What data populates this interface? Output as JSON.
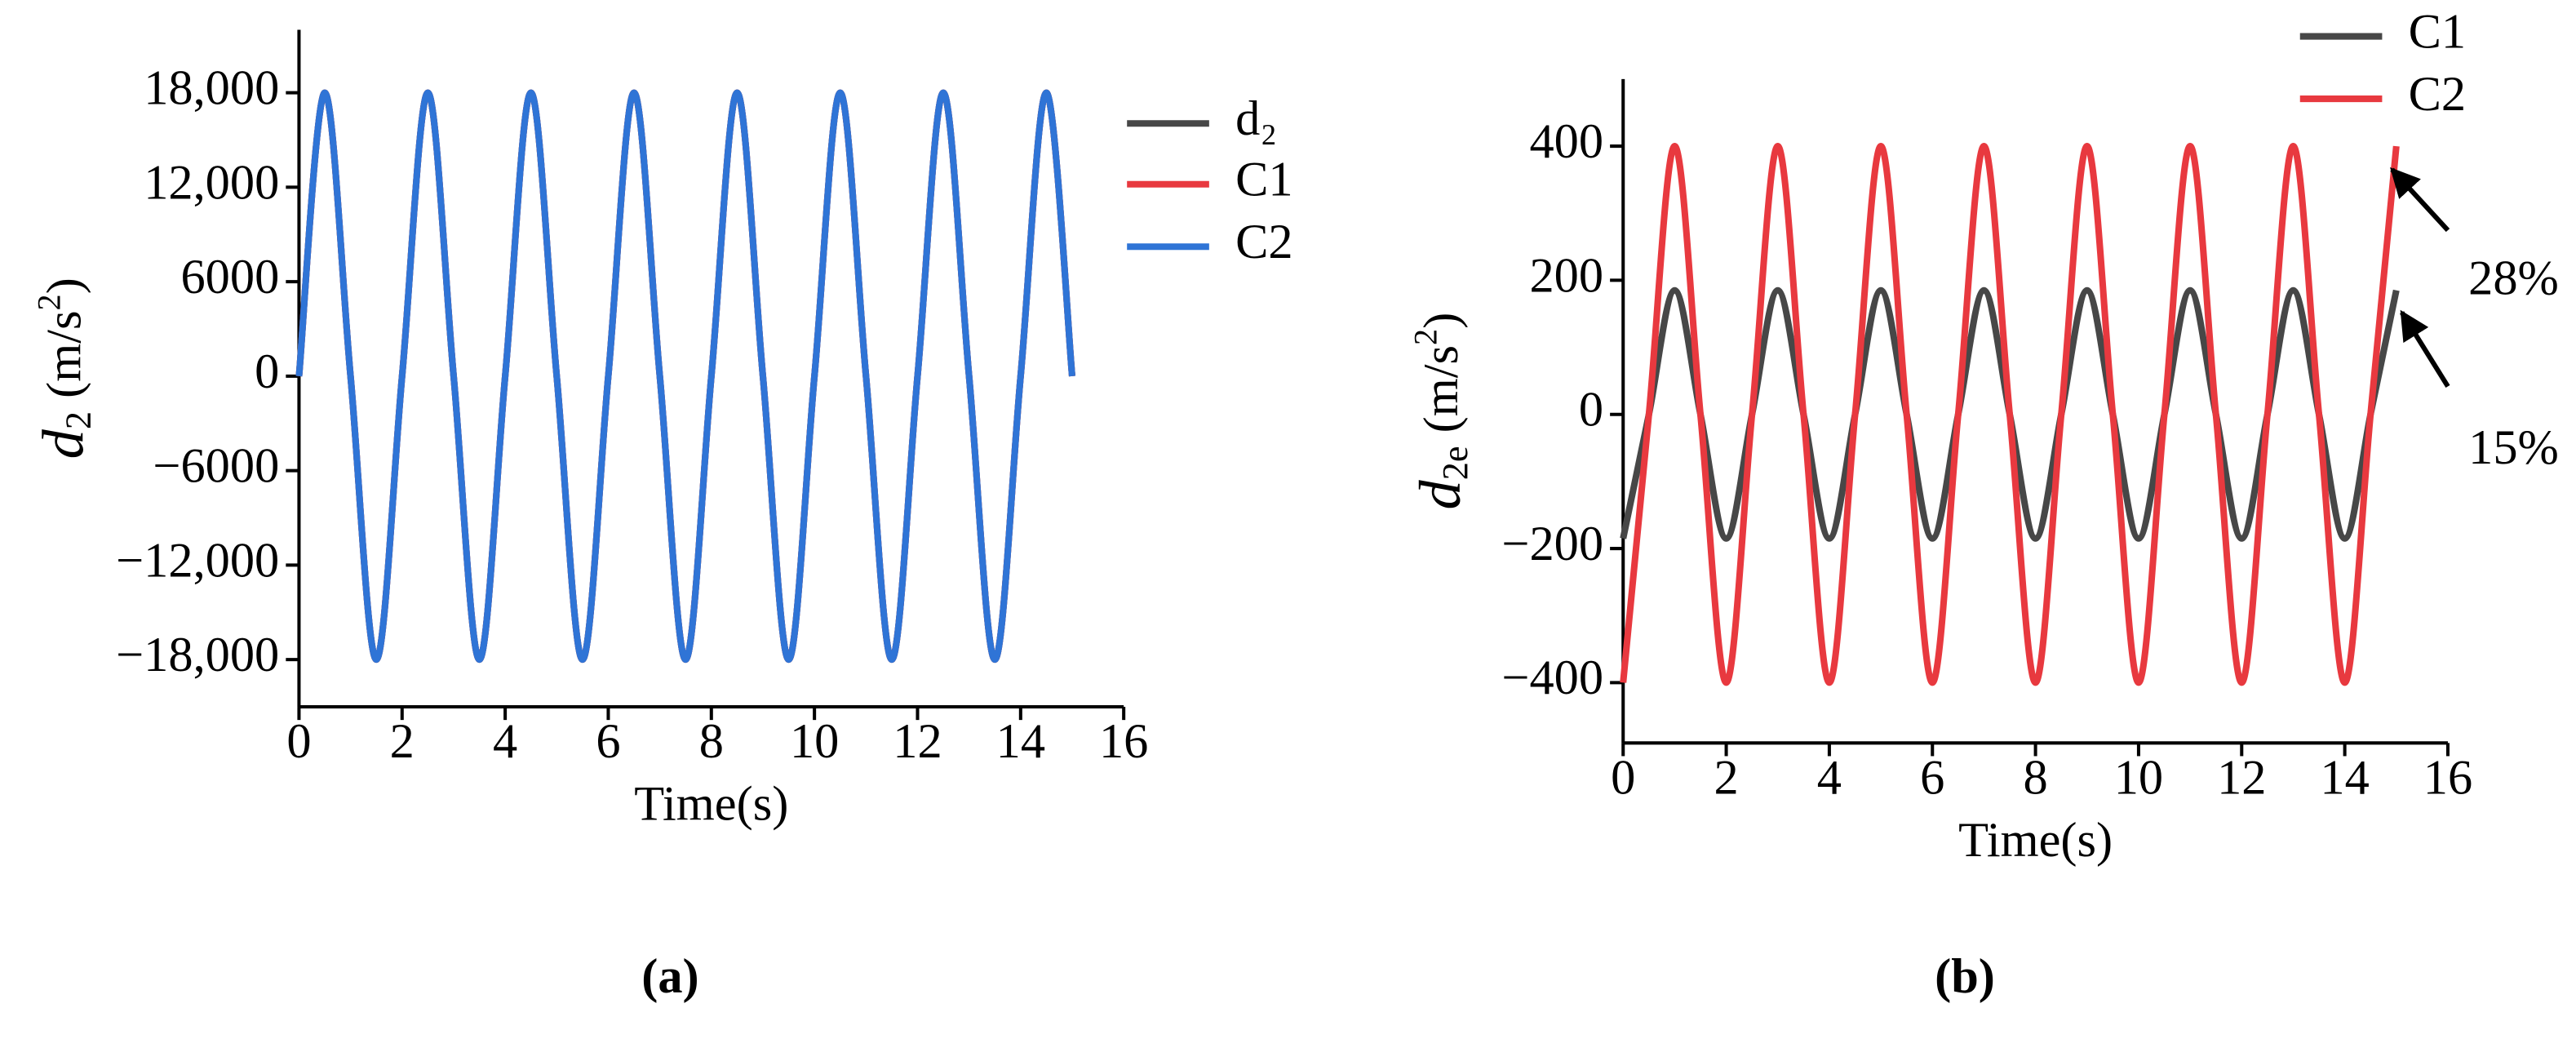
{
  "chart_data": [
    {
      "type": "line",
      "caption": "(a)",
      "xlabel": "Time(s)",
      "ylabel": {
        "symbol": "d",
        "sub": "2",
        "unit": "(m/s",
        "sup": "2",
        "close": ")"
      },
      "x": [
        0,
        0.5,
        1,
        1.5,
        2,
        2.5,
        3,
        3.5,
        4,
        4.5,
        5,
        5.5,
        6,
        6.5,
        7,
        7.5,
        8,
        8.5,
        9,
        9.5,
        10,
        10.5,
        11,
        11.5,
        12,
        12.5,
        13,
        13.5,
        14,
        14.5,
        15
      ],
      "series": [
        {
          "name": "d₂",
          "color": "#474747",
          "values": [
            0,
            18000,
            0,
            -18000,
            0,
            18000,
            0,
            -18000,
            0,
            18000,
            0,
            -18000,
            0,
            18000,
            0,
            -18000,
            0,
            18000,
            0,
            -18000,
            0,
            18000,
            0,
            -18000,
            0,
            18000,
            0,
            -18000,
            0,
            18000,
            0
          ]
        },
        {
          "name": "C1",
          "color": "#e8393f",
          "values": [
            0,
            18000,
            0,
            -18000,
            0,
            18000,
            0,
            -18000,
            0,
            18000,
            0,
            -18000,
            0,
            18000,
            0,
            -18000,
            0,
            18000,
            0,
            -18000,
            0,
            18000,
            0,
            -18000,
            0,
            18000,
            0,
            -18000,
            0,
            18000,
            0
          ]
        },
        {
          "name": "C2",
          "color": "#2f74d6",
          "values": [
            0,
            18000,
            0,
            -18000,
            0,
            18000,
            0,
            -18000,
            0,
            18000,
            0,
            -18000,
            0,
            18000,
            0,
            -18000,
            0,
            18000,
            0,
            -18000,
            0,
            18000,
            0,
            -18000,
            0,
            18000,
            0,
            -18000,
            0,
            18000,
            0
          ]
        }
      ],
      "xlim": [
        0,
        16
      ],
      "xticks": [
        0,
        2,
        4,
        6,
        8,
        10,
        12,
        14,
        16
      ],
      "ylim": [
        -21000,
        22000
      ],
      "yticks": [
        {
          "value": -18000,
          "label": "−18,000"
        },
        {
          "value": -12000,
          "label": "−12,000"
        },
        {
          "value": -6000,
          "label": "−6000"
        },
        0,
        6000,
        {
          "value": 12000,
          "label": "12,000"
        },
        {
          "value": 18000,
          "label": "18,000"
        }
      ],
      "legend": "right"
    },
    {
      "type": "line",
      "caption": "(b)",
      "xlabel": "Time(s)",
      "ylabel": {
        "symbol": "d",
        "sub": "2e",
        "unit": "(m/s",
        "sup": "2",
        "close": ")"
      },
      "x": [
        0,
        0.5,
        1,
        1.5,
        2,
        2.5,
        3,
        3.5,
        4,
        4.5,
        5,
        5.5,
        6,
        6.5,
        7,
        7.5,
        8,
        8.5,
        9,
        9.5,
        10,
        10.5,
        11,
        11.5,
        12,
        12.5,
        13,
        13.5,
        14,
        14.5,
        15
      ],
      "series": [
        {
          "name": "C1",
          "color": "#474747",
          "values": [
            -185,
            0,
            185,
            0,
            -185,
            0,
            185,
            0,
            -185,
            0,
            185,
            0,
            -185,
            0,
            185,
            0,
            -185,
            0,
            185,
            0,
            -185,
            0,
            185,
            0,
            -185,
            0,
            185,
            0,
            -185,
            0,
            185
          ]
        },
        {
          "name": "C2",
          "color": "#e8393f",
          "values": [
            -400,
            0,
            400,
            0,
            -400,
            0,
            400,
            0,
            -400,
            0,
            400,
            0,
            -400,
            0,
            400,
            0,
            -400,
            0,
            400,
            0,
            -400,
            0,
            400,
            0,
            -400,
            0,
            400,
            0,
            -400,
            0,
            400
          ]
        }
      ],
      "xlim": [
        0,
        16
      ],
      "xticks": [
        0,
        2,
        4,
        6,
        8,
        10,
        12,
        14,
        16
      ],
      "ylim": [
        -490,
        500
      ],
      "yticks": [
        {
          "value": -400,
          "label": "−400"
        },
        {
          "value": -200,
          "label": "−200"
        },
        0,
        200,
        400
      ],
      "annotations": [
        "28%",
        "15%"
      ],
      "legend": "top right"
    }
  ]
}
